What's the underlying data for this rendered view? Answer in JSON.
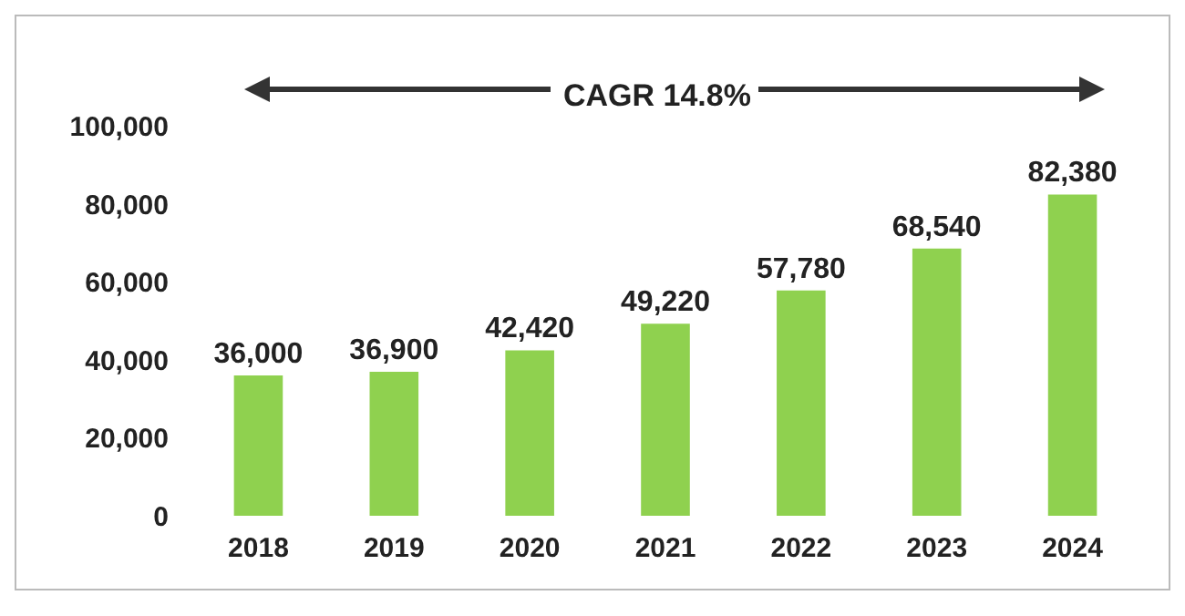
{
  "chart_data": {
    "type": "bar",
    "categories": [
      "2018",
      "2019",
      "2020",
      "2021",
      "2022",
      "2023",
      "2024"
    ],
    "values": [
      36000,
      36900,
      42420,
      49220,
      57780,
      68540,
      82380
    ],
    "color": "#8fd14f",
    "ylim": [
      0,
      100000
    ],
    "yticks": [
      {
        "value": 0,
        "label": "0"
      },
      {
        "value": 20000,
        "label": "20,000"
      },
      {
        "value": 40000,
        "label": "40,000"
      },
      {
        "value": 60000,
        "label": "60,000"
      },
      {
        "value": 80000,
        "label": "80,000"
      },
      {
        "value": 100000,
        "label": "100,000"
      }
    ],
    "value_labels": [
      "36,000",
      "36,900",
      "42,420",
      "49,220",
      "57,780",
      "68,540",
      "82,380"
    ],
    "annotations": [
      "CAGR 14.8%"
    ]
  }
}
